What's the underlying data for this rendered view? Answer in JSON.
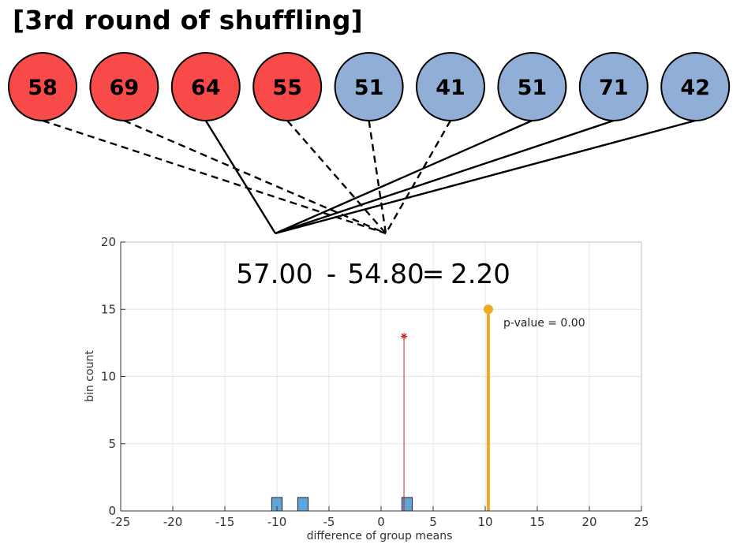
{
  "title": "[3rd round of shuffling]",
  "balls": [
    {
      "value": "58",
      "group": "red"
    },
    {
      "value": "69",
      "group": "red"
    },
    {
      "value": "64",
      "group": "red"
    },
    {
      "value": "55",
      "group": "red"
    },
    {
      "value": "51",
      "group": "blue"
    },
    {
      "value": "41",
      "group": "blue"
    },
    {
      "value": "51",
      "group": "blue"
    },
    {
      "value": "71",
      "group": "blue"
    },
    {
      "value": "42",
      "group": "blue"
    }
  ],
  "lines": [
    {
      "ball": 0,
      "target": "right",
      "style": "dashed"
    },
    {
      "ball": 1,
      "target": "right",
      "style": "dashed"
    },
    {
      "ball": 2,
      "target": "left",
      "style": "solid"
    },
    {
      "ball": 3,
      "target": "right",
      "style": "dashed"
    },
    {
      "ball": 4,
      "target": "right",
      "style": "dashed"
    },
    {
      "ball": 5,
      "target": "right",
      "style": "dashed"
    },
    {
      "ball": 6,
      "target": "left",
      "style": "solid"
    },
    {
      "ball": 7,
      "target": "left",
      "style": "solid"
    },
    {
      "ball": 8,
      "target": "left",
      "style": "solid"
    }
  ],
  "colors": {
    "red_fill": "#f94a4a",
    "blue_fill": "#91afd6",
    "bar_fill": "#5ea6d8",
    "observed_line": "#eeaa22",
    "shuffle_line": "#cc2222",
    "grid": "#e4e4e4"
  },
  "equation": {
    "mean1": "57.00",
    "minus": "-",
    "mean2": "54.80",
    "equals": "=",
    "result": "2.20"
  },
  "p_value_text": "p-value = 0.00",
  "chart_data": {
    "type": "bar",
    "title": "",
    "xlabel": "difference of group means",
    "ylabel": "bin count",
    "xlim": [
      -25,
      25
    ],
    "ylim": [
      0,
      20
    ],
    "xticks": [
      -25,
      -20,
      -15,
      -10,
      -5,
      0,
      5,
      10,
      15,
      20,
      25
    ],
    "yticks": [
      0,
      5,
      10,
      15,
      20
    ],
    "grid": true,
    "bin_width": 1,
    "histogram": [
      {
        "center": -10.0,
        "count": 1
      },
      {
        "center": -7.5,
        "count": 1
      },
      {
        "center": 2.5,
        "count": 1
      }
    ],
    "observed": {
      "x": 10.3,
      "count": 15
    },
    "current_shuffle": {
      "x": 2.2,
      "count": 13
    }
  }
}
